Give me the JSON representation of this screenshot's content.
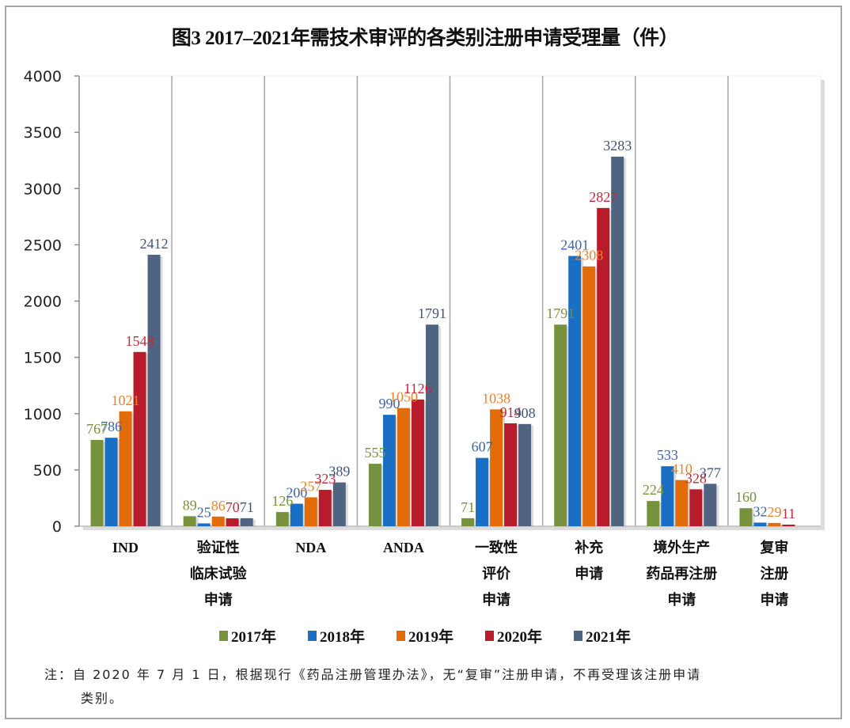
{
  "chart_data": {
    "type": "bar",
    "title": "图3 2017–2021年需技术审评的各类别注册申请受理量（件）",
    "xlabel": "",
    "ylabel": "",
    "ylim": [
      0,
      4000
    ],
    "yticks": [
      0,
      500,
      1000,
      1500,
      2000,
      2500,
      3000,
      3500,
      4000
    ],
    "grid": false,
    "legend_position": "bottom",
    "categories": [
      [
        "IND"
      ],
      [
        "验证性",
        "临床试验",
        "申请"
      ],
      [
        "NDA"
      ],
      [
        "ANDA"
      ],
      [
        "一致性",
        "评价",
        "申请"
      ],
      [
        "补充",
        "申请"
      ],
      [
        "境外生产",
        "药品再注册",
        "申请"
      ],
      [
        "复审",
        "注册",
        "申请"
      ]
    ],
    "series": [
      {
        "name": "2017年",
        "color": "#76923c",
        "values": [
          767,
          89,
          126,
          555,
          71,
          1791,
          224,
          160
        ]
      },
      {
        "name": "2018年",
        "color": "#1a6fc4",
        "values": [
          786,
          25,
          200,
          990,
          607,
          2401,
          533,
          32
        ]
      },
      {
        "name": "2019年",
        "color": "#e36c0a",
        "values": [
          1021,
          86,
          257,
          1050,
          1038,
          2308,
          410,
          29
        ]
      },
      {
        "name": "2020年",
        "color": "#b81c2b",
        "values": [
          1548,
          70,
          323,
          1126,
          914,
          2827,
          328,
          11
        ]
      },
      {
        "name": "2021年",
        "color": "#4f6480",
        "values": [
          2412,
          71,
          389,
          1791,
          908,
          3283,
          377,
          null
        ]
      }
    ],
    "label_colors": [
      "#76923c",
      "#3d64a8",
      "#f07f2a",
      "#c0283a",
      "#3e5577"
    ]
  },
  "note": {
    "line1": "注：自 2020 年 7 月 1 日，根据现行《药品注册管理办法》，无“复审”注册申请，不再受理该注册申请",
    "line2": "类别。"
  }
}
